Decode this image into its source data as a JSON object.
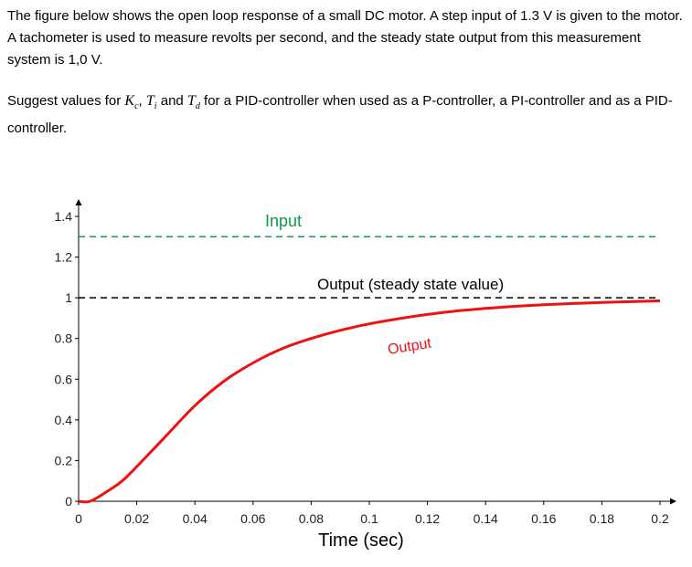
{
  "intro_text": "The figure below shows the open loop response of a small DC motor. A step input of 1.3 V is given to the motor. A tachometer is used to measure revolts per second, and the steady state output from this measurement system is 1,0 V.",
  "question": {
    "before": "Suggest values for ",
    "kc_symbol": "K",
    "kc_sub": "c",
    "sep1": ", ",
    "ti_symbol": "T",
    "ti_sub": "i",
    "sep2": " and ",
    "td_symbol": "T",
    "td_sub": "d",
    "after": " for a PID-controller when used as a P-controller, a PI-controller and as a PID-controller."
  },
  "chart_data": {
    "type": "line",
    "xlabel": "Time (sec)",
    "xlim": [
      0,
      0.2
    ],
    "ylim": [
      0,
      1.4
    ],
    "x_ticks": [
      "0",
      "0.02",
      "0.04",
      "0.06",
      "0.08",
      "0.1",
      "0.12",
      "0.14",
      "0.16",
      "0.18",
      "0.2"
    ],
    "y_ticks": [
      "0",
      "0.2",
      "0.4",
      "0.6",
      "0.8",
      "1",
      "1.2",
      "1.4"
    ],
    "annotations": {
      "input": "Input",
      "steady_state": "Output (steady state value)",
      "output": "Output"
    },
    "series": [
      {
        "name": "Input",
        "color": "#0e9a48",
        "style": "dashed",
        "x": [
          0,
          0.2
        ],
        "y": [
          1.3,
          1.3
        ]
      },
      {
        "name": "Output (steady state value)",
        "color": "#000000",
        "style": "dashed",
        "x": [
          0,
          0.2
        ],
        "y": [
          1.0,
          1.0
        ]
      },
      {
        "name": "Output",
        "color": "#ee1111",
        "style": "solid",
        "x": [
          0,
          0.004,
          0.01,
          0.015,
          0.02,
          0.03,
          0.04,
          0.05,
          0.06,
          0.07,
          0.08,
          0.09,
          0.1,
          0.11,
          0.12,
          0.13,
          0.14,
          0.15,
          0.16,
          0.17,
          0.18,
          0.19,
          0.2
        ],
        "y": [
          0,
          0.0,
          0.05,
          0.1,
          0.17,
          0.32,
          0.47,
          0.59,
          0.68,
          0.75,
          0.8,
          0.84,
          0.872,
          0.897,
          0.918,
          0.935,
          0.948,
          0.958,
          0.966,
          0.972,
          0.977,
          0.981,
          0.985
        ]
      }
    ]
  }
}
